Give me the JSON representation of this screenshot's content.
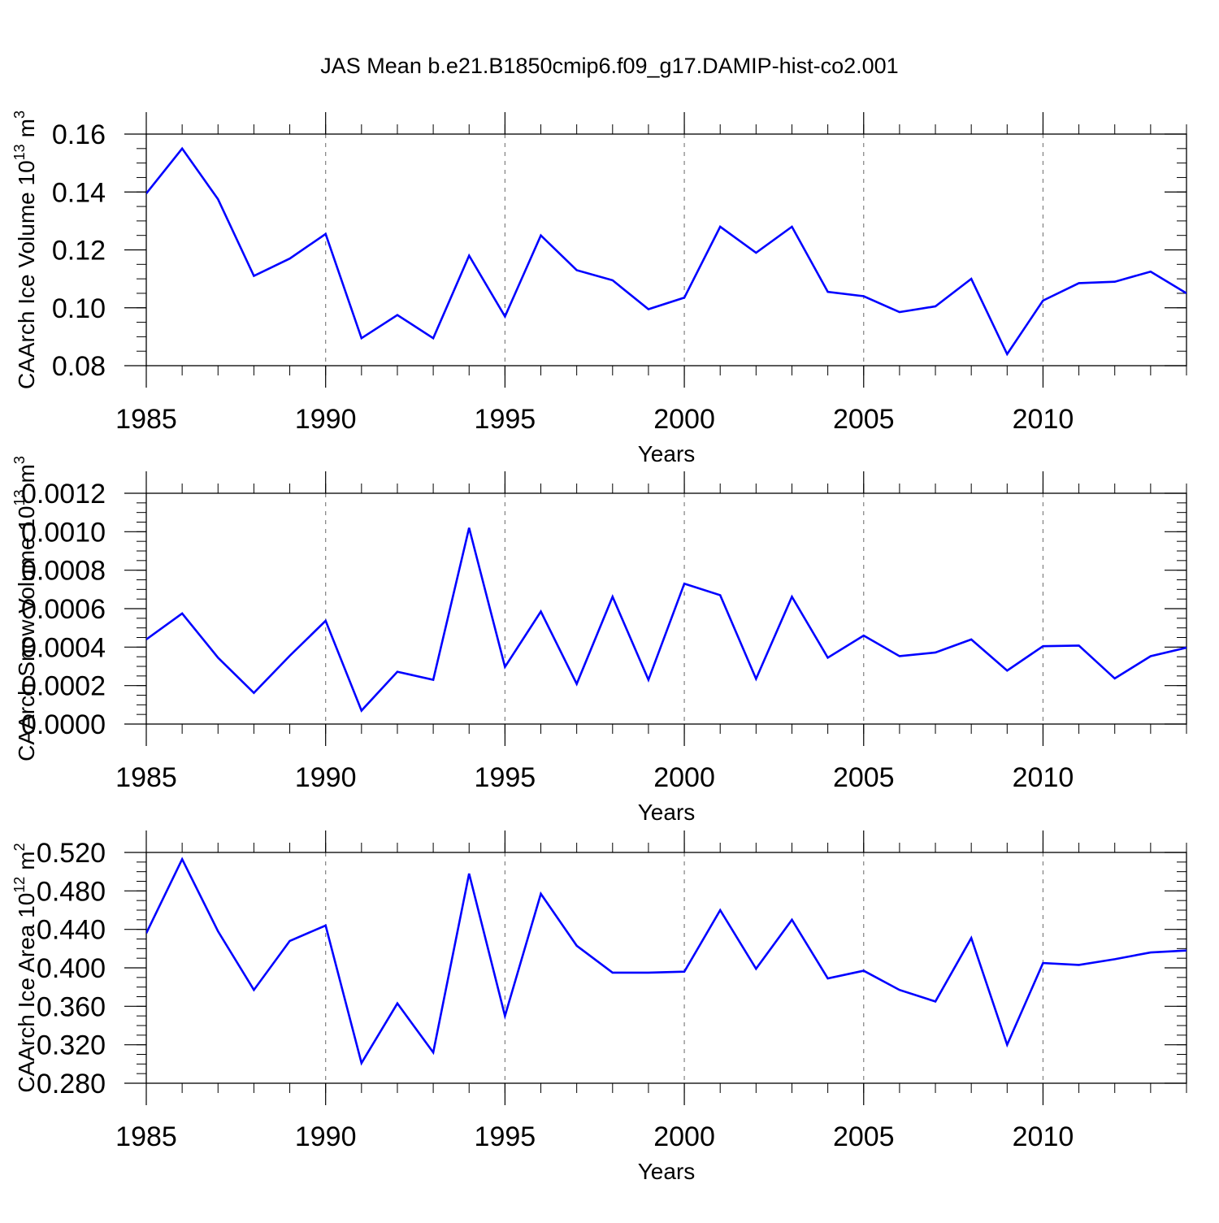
{
  "title": "JAS Mean b.e21.B1850cmip6.f09_g17.DAMIP-hist-co2.001",
  "colors": {
    "line": "#0000ff",
    "axis": "#000000",
    "grid": "#808080"
  },
  "chart_data": [
    {
      "type": "line",
      "ylabel_main": "CAArch Ice Volume 10",
      "ylabel_exp": "13",
      "ylabel_unit": "m",
      "ylabel_unit_exp": "3",
      "xlabel": "Years",
      "xlim": [
        1985,
        2014
      ],
      "ylim": [
        0.08,
        0.16
      ],
      "xticks": [
        1985,
        1990,
        1995,
        2000,
        2005,
        2010
      ],
      "yticks": [
        0.08,
        0.1,
        0.12,
        0.14,
        0.16
      ],
      "ytick_labels": [
        "0.08",
        "0.10",
        "0.12",
        "0.14",
        "0.16"
      ],
      "y_minor_step": 0.005,
      "x": [
        1985,
        1986,
        1987,
        1988,
        1989,
        1990,
        1991,
        1992,
        1993,
        1994,
        1995,
        1996,
        1997,
        1998,
        1999,
        2000,
        2001,
        2002,
        2003,
        2004,
        2005,
        2006,
        2007,
        2008,
        2009,
        2010,
        2011,
        2012,
        2013,
        2014
      ],
      "values": [
        0.1395,
        0.155,
        0.1375,
        0.111,
        0.117,
        0.1255,
        0.0895,
        0.0975,
        0.0895,
        0.118,
        0.097,
        0.125,
        0.113,
        0.1095,
        0.0995,
        0.1035,
        0.128,
        0.119,
        0.128,
        0.1055,
        0.104,
        0.0985,
        0.1005,
        0.11,
        0.084,
        0.1025,
        0.1085,
        0.109,
        0.1125,
        0.105
      ]
    },
    {
      "type": "line",
      "ylabel_main": "CAArch Snow Volume 10",
      "ylabel_exp": "13",
      "ylabel_unit": "m",
      "ylabel_unit_exp": "3",
      "xlabel": "Years",
      "xlim": [
        1985,
        2014
      ],
      "ylim": [
        0,
        0.0012
      ],
      "xticks": [
        1985,
        1990,
        1995,
        2000,
        2005,
        2010
      ],
      "yticks": [
        0,
        0.0002,
        0.0004,
        0.0006,
        0.0008,
        0.001,
        0.0012
      ],
      "ytick_labels": [
        "0.0000",
        "0.0002",
        "0.0004",
        "0.0006",
        "0.0008",
        "0.0010",
        "0.0012"
      ],
      "y_minor_step": 5e-05,
      "x": [
        1985,
        1986,
        1987,
        1988,
        1989,
        1990,
        1991,
        1992,
        1993,
        1994,
        1995,
        1996,
        1997,
        1998,
        1999,
        2000,
        2001,
        2002,
        2003,
        2004,
        2005,
        2006,
        2007,
        2008,
        2009,
        2010,
        2011,
        2012,
        2013,
        2014
      ],
      "values": [
        0.00044,
        0.000575,
        0.000345,
        0.000162,
        0.000355,
        0.000537,
        7e-05,
        0.000272,
        0.00023,
        0.00102,
        0.000297,
        0.000585,
        0.000209,
        0.000662,
        0.00023,
        0.00073,
        0.00067,
        0.000235,
        0.000662,
        0.000345,
        0.00046,
        0.000353,
        0.000372,
        0.00044,
        0.000278,
        0.000405,
        0.000408,
        0.000237,
        0.000353,
        0.000397
      ]
    },
    {
      "type": "line",
      "ylabel_main": "CAArch Ice Area 10",
      "ylabel_exp": "12",
      "ylabel_unit": "m",
      "ylabel_unit_exp": "2",
      "xlabel": "Years",
      "xlim": [
        1985,
        2014
      ],
      "ylim": [
        0.28,
        0.52
      ],
      "xticks": [
        1985,
        1990,
        1995,
        2000,
        2005,
        2010
      ],
      "yticks": [
        0.28,
        0.32,
        0.36,
        0.4,
        0.44,
        0.48,
        0.52
      ],
      "ytick_labels": [
        "0.280",
        "0.320",
        "0.360",
        "0.400",
        "0.440",
        "0.480",
        "0.520"
      ],
      "y_minor_step": 0.01,
      "x": [
        1985,
        1986,
        1987,
        1988,
        1989,
        1990,
        1991,
        1992,
        1993,
        1994,
        1995,
        1996,
        1997,
        1998,
        1999,
        2000,
        2001,
        2002,
        2003,
        2004,
        2005,
        2006,
        2007,
        2008,
        2009,
        2010,
        2011,
        2012,
        2013,
        2014
      ],
      "values": [
        0.436,
        0.513,
        0.438,
        0.377,
        0.428,
        0.444,
        0.301,
        0.363,
        0.312,
        0.498,
        0.35,
        0.477,
        0.423,
        0.395,
        0.395,
        0.396,
        0.46,
        0.399,
        0.45,
        0.389,
        0.397,
        0.377,
        0.365,
        0.431,
        0.32,
        0.405,
        0.403,
        0.409,
        0.416,
        0.418
      ]
    }
  ]
}
